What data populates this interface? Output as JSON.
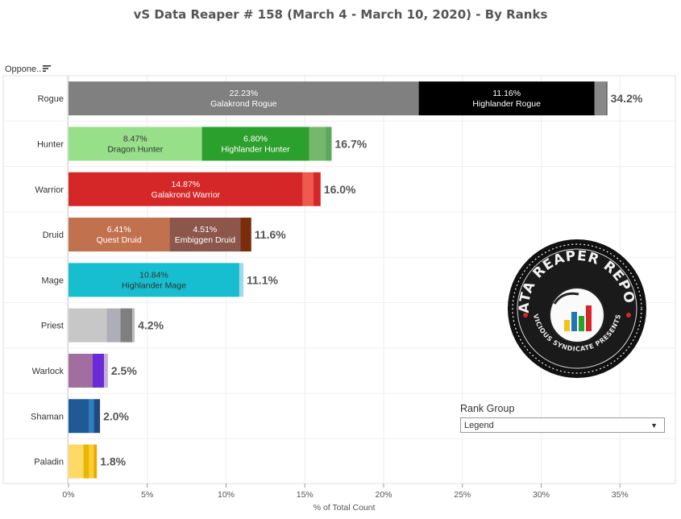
{
  "title": "vS Data Reaper #  158 (March 4 - March 10, 2020) - By Ranks",
  "column_header": "Oppone..",
  "sort_icon": "sort-descending-icon",
  "logo": {
    "top_text": "DATA REAPER REPORT",
    "bottom_text": "VICIOUS SYNDICATE PRESENTS",
    "icon": "reaper-bar-chart-logo"
  },
  "rank_filter": {
    "title": "Rank Group",
    "selected": "Legend",
    "caret_icon": "dropdown-caret-icon"
  },
  "chart_data": {
    "type": "bar",
    "orientation": "horizontal-stacked",
    "xlabel": "% of Total Count",
    "xlim": [
      0,
      38
    ],
    "xticks": [
      "0%",
      "5%",
      "10%",
      "15%",
      "20%",
      "25%",
      "30%",
      "35%"
    ],
    "xtick_values": [
      0,
      5,
      10,
      15,
      20,
      25,
      30,
      35
    ],
    "grid": true,
    "categories": [
      "Rogue",
      "Hunter",
      "Warrior",
      "Druid",
      "Mage",
      "Priest",
      "Warlock",
      "Shaman",
      "Paladin"
    ],
    "totals": [
      "34.2%",
      "16.7%",
      "16.0%",
      "11.6%",
      "11.1%",
      "4.2%",
      "2.5%",
      "2.0%",
      "1.8%"
    ],
    "rows": [
      {
        "category": "Rogue",
        "segments": [
          {
            "value": 22.23,
            "pct": "22.23%",
            "name": "Galakrond Rogue",
            "color": "#808080",
            "text_color": "#ffffff"
          },
          {
            "value": 11.16,
            "pct": "11.16%",
            "name": "Highlander Rogue",
            "color": "#000000",
            "text_color": "#ffffff"
          },
          {
            "value": 0.75,
            "color": "#888888"
          },
          {
            "value": 0.06,
            "color": "#444444"
          }
        ]
      },
      {
        "category": "Hunter",
        "segments": [
          {
            "value": 8.47,
            "pct": "8.47%",
            "name": "Dragon Hunter",
            "color": "#98df8a",
            "text_color": "#333333"
          },
          {
            "value": 6.8,
            "pct": "6.80%",
            "name": "Highlander Hunter",
            "color": "#2ca02c",
            "text_color": "#ffffff"
          },
          {
            "value": 1.05,
            "color": "#74b76d"
          },
          {
            "value": 0.38,
            "color": "#5aa85a"
          }
        ]
      },
      {
        "category": "Warrior",
        "segments": [
          {
            "value": 14.87,
            "pct": "14.87%",
            "name": "Galakrond Warrior",
            "color": "#d62728",
            "text_color": "#ffffff"
          },
          {
            "value": 0.68,
            "color": "#ee5a4f"
          },
          {
            "value": 0.45,
            "color": "#d62728"
          }
        ]
      },
      {
        "category": "Druid",
        "segments": [
          {
            "value": 6.41,
            "pct": "6.41%",
            "name": "Quest Druid",
            "color": "#c2714f",
            "text_color": "#ffffff"
          },
          {
            "value": 4.51,
            "pct": "4.51%",
            "name": "Embiggen Druid",
            "color": "#8c564b",
            "text_color": "#ffffff"
          },
          {
            "value": 0.68,
            "color": "#7b2c0a"
          }
        ]
      },
      {
        "category": "Mage",
        "segments": [
          {
            "value": 10.84,
            "pct": "10.84%",
            "name": "Highlander Mage",
            "color": "#17becf",
            "text_color": "#333333"
          },
          {
            "value": 0.26,
            "color": "#9edae5"
          }
        ]
      },
      {
        "category": "Priest",
        "segments": [
          {
            "value": 2.42,
            "color": "#c7c7c7"
          },
          {
            "value": 0.88,
            "color": "#aeaeb8"
          },
          {
            "value": 0.75,
            "color": "#7f7f7f"
          },
          {
            "value": 0.15,
            "color": "#bdbdbd"
          }
        ]
      },
      {
        "category": "Warlock",
        "segments": [
          {
            "value": 1.52,
            "color": "#a26ea0"
          },
          {
            "value": 0.74,
            "color": "#6a2bd6"
          },
          {
            "value": 0.24,
            "color": "#c5b0d5"
          }
        ]
      },
      {
        "category": "Shaman",
        "segments": [
          {
            "value": 1.3,
            "color": "#1f5a96"
          },
          {
            "value": 0.3,
            "color": "#2c7fc3"
          },
          {
            "value": 0.4,
            "color": "#1f4a80"
          }
        ]
      },
      {
        "category": "Paladin",
        "segments": [
          {
            "value": 0.95,
            "color": "#ffd966"
          },
          {
            "value": 0.35,
            "color": "#e6b800"
          },
          {
            "value": 0.3,
            "color": "#ffcc33"
          },
          {
            "value": 0.2,
            "color": "#e8a800"
          }
        ]
      }
    ]
  }
}
